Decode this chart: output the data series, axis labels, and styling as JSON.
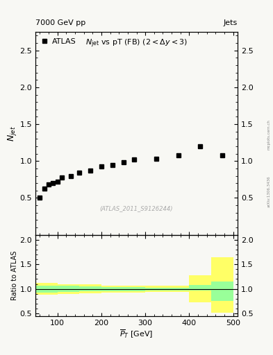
{
  "title_left": "7000 GeV pp",
  "title_right": "Jets",
  "main_title_text": "N_{jet} vs pT (FB) (2 < Δy < 3)",
  "legend_label": "ATLAS",
  "watermark": "(ATLAS_2011_S9126244)",
  "arxiv_text": "arXiv:1306.3436",
  "mcplots_text": "mcplots.cern.ch",
  "xlabel": "$\\overline{P}_T$ [GeV]",
  "ylabel_main": "$N_{jet}$",
  "ylabel_ratio": "Ratio to ATLAS",
  "data_x": [
    60,
    70,
    80,
    90,
    100,
    110,
    130,
    150,
    175,
    200,
    225,
    250,
    275,
    325,
    375,
    425,
    475
  ],
  "data_y": [
    0.5,
    0.63,
    0.68,
    0.7,
    0.72,
    0.78,
    0.8,
    0.84,
    0.87,
    0.93,
    0.95,
    0.98,
    1.02,
    1.03,
    1.08,
    1.2,
    1.08
  ],
  "ylim_main": [
    0.0,
    2.75
  ],
  "ylim_ratio": [
    0.45,
    2.1
  ],
  "yticks_main": [
    0.5,
    1.0,
    1.5,
    2.0,
    2.5
  ],
  "yticks_ratio": [
    0.5,
    1.0,
    1.5,
    2.0
  ],
  "xlim": [
    50,
    510
  ],
  "xticks": [
    100,
    200,
    300,
    400,
    500
  ],
  "bg_color": "#f8f8f4",
  "ratio_yellow_edges": [
    50,
    100,
    150,
    200,
    250,
    300,
    350,
    400,
    450,
    500
  ],
  "ratio_yellow_lo": [
    0.88,
    0.9,
    0.91,
    0.93,
    0.93,
    0.94,
    0.94,
    0.73,
    0.52
  ],
  "ratio_yellow_hi": [
    1.12,
    1.1,
    1.09,
    1.07,
    1.07,
    1.06,
    1.06,
    1.28,
    1.65
  ],
  "ratio_green_lo": [
    0.93,
    0.94,
    0.95,
    0.96,
    0.96,
    0.97,
    0.97,
    0.97,
    0.75
  ],
  "ratio_green_hi": [
    1.07,
    1.06,
    1.05,
    1.04,
    1.04,
    1.03,
    1.03,
    1.08,
    1.15
  ]
}
